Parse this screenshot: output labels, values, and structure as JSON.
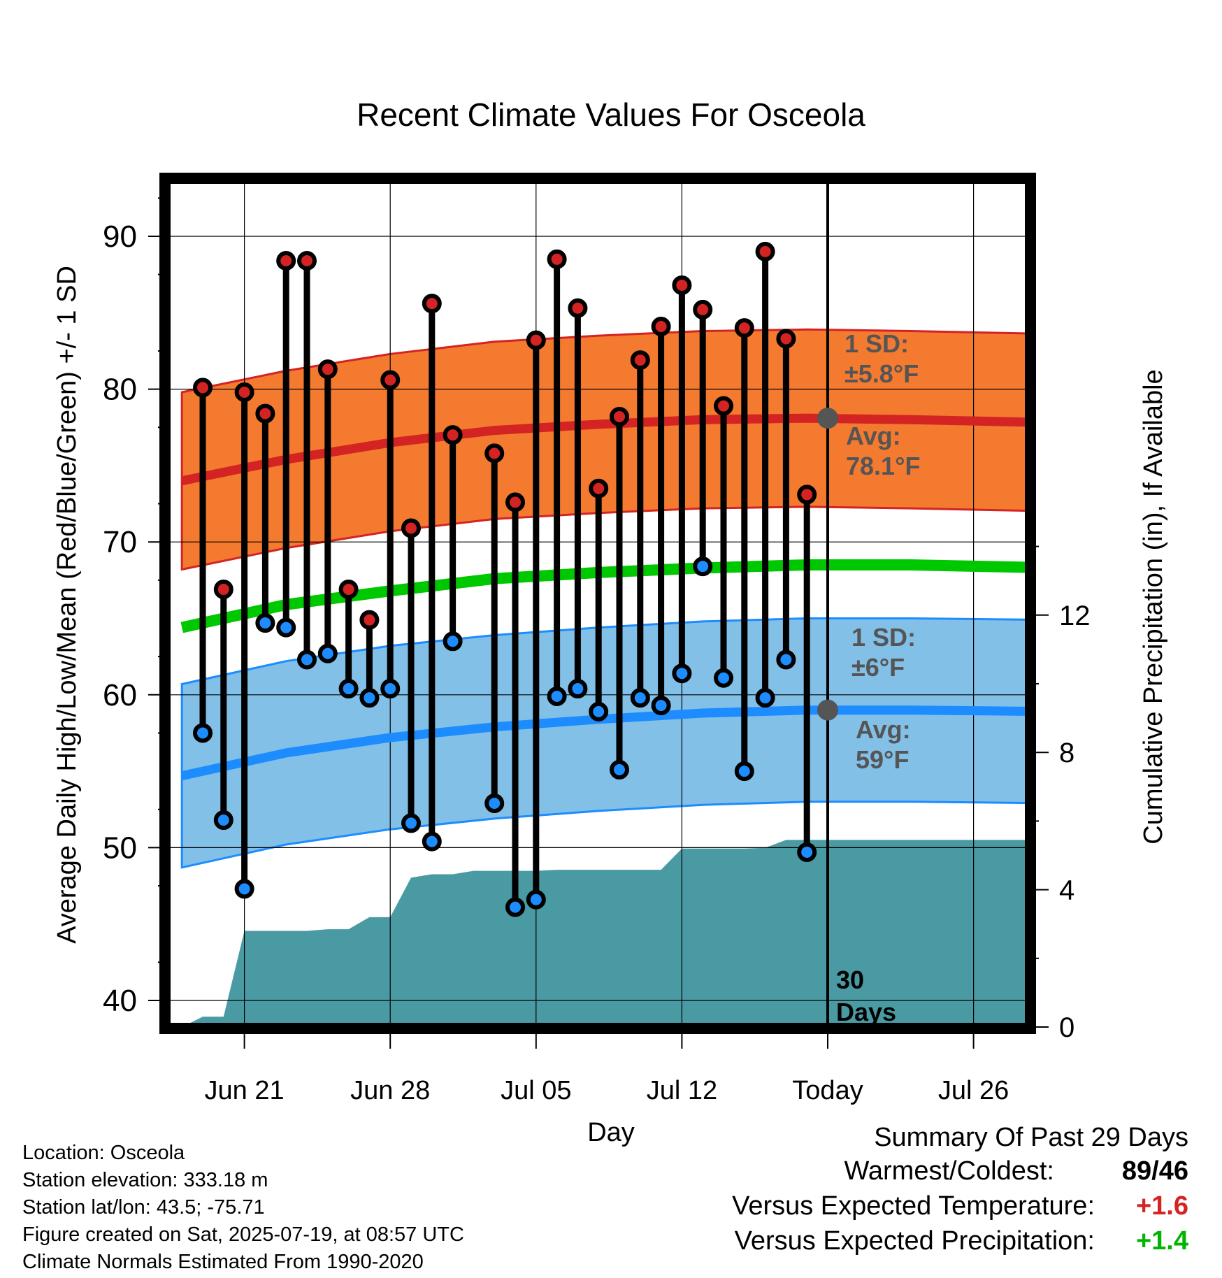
{
  "chart_data": {
    "type": "line",
    "title": "Recent Climate Values For Osceola",
    "xlabel": "Day",
    "ylabel": "Average Daily High/Low/Mean (Red/Blue/Green) +/- 1 SD",
    "y2label": "Cumulative Precipitation (in), If Available",
    "ylim": [
      38.5,
      94
    ],
    "y2lim": [
      0,
      18.7
    ],
    "xlim_dates": [
      "2025-06-18",
      "2025-07-30"
    ],
    "x_tick_labels": [
      "Jun 21",
      "Jun 28",
      "Jul 05",
      "Jul 12",
      "Today",
      "Jul 26"
    ],
    "y_ticks": [
      40,
      50,
      60,
      70,
      80,
      90
    ],
    "y2_ticks": [
      0,
      4,
      8,
      12
    ],
    "grid": true,
    "colors": {
      "high": "#d42323",
      "high_band": "#f47a30",
      "low": "#1c8cff",
      "low_band": "#82c0e8",
      "mean": "#00c800",
      "precip": "#4a9aa4",
      "annotation": "#555555"
    },
    "today": "2025-07-19",
    "today_label": [
      "30",
      "Days"
    ],
    "dates": [
      "2025-06-19",
      "2025-06-20",
      "2025-06-21",
      "2025-06-22",
      "2025-06-23",
      "2025-06-24",
      "2025-06-25",
      "2025-06-26",
      "2025-06-27",
      "2025-06-28",
      "2025-06-29",
      "2025-06-30",
      "2025-07-01",
      "2025-07-02",
      "2025-07-03",
      "2025-07-04",
      "2025-07-05",
      "2025-07-06",
      "2025-07-07",
      "2025-07-08",
      "2025-07-09",
      "2025-07-10",
      "2025-07-11",
      "2025-07-12",
      "2025-07-13",
      "2025-07-14",
      "2025-07-15",
      "2025-07-16",
      "2025-07-17",
      "2025-07-18"
    ],
    "series": [
      {
        "name": "High",
        "values": [
          80.1,
          66.9,
          79.8,
          78.4,
          88.4,
          88.4,
          81.3,
          66.9,
          64.9,
          80.6,
          70.9,
          85.6,
          77.0,
          null,
          75.8,
          72.6,
          83.2,
          88.5,
          85.3,
          73.5,
          78.2,
          81.9,
          84.1,
          86.8,
          85.2,
          78.9,
          84.0,
          89.0,
          83.3,
          73.1
        ]
      },
      {
        "name": "Low",
        "values": [
          57.5,
          51.8,
          47.3,
          64.7,
          64.4,
          62.3,
          62.7,
          60.4,
          59.8,
          60.4,
          51.6,
          50.4,
          63.5,
          null,
          52.9,
          46.1,
          46.6,
          59.9,
          60.4,
          58.9,
          55.1,
          59.8,
          59.3,
          61.4,
          68.4,
          61.1,
          55.0,
          59.8,
          62.3,
          49.7
        ]
      }
    ],
    "normals_x": [
      "2025-06-18",
      "2025-06-23",
      "2025-06-28",
      "2025-07-03",
      "2025-07-08",
      "2025-07-13",
      "2025-07-18",
      "2025-07-23",
      "2025-07-30"
    ],
    "normal_high": [
      74.0,
      75.4,
      76.5,
      77.3,
      77.7,
      78.0,
      78.1,
      78.0,
      77.8
    ],
    "normal_high_sd": 5.8,
    "normal_low": [
      54.7,
      56.2,
      57.2,
      57.9,
      58.4,
      58.8,
      59.0,
      59.0,
      58.9
    ],
    "normal_low_sd": 6.0,
    "normal_mean": [
      64.4,
      65.9,
      66.8,
      67.6,
      68.0,
      68.3,
      68.5,
      68.5,
      68.3
    ],
    "precip_cumulative": [
      0.0,
      0.3,
      0.3,
      2.8,
      2.8,
      2.8,
      2.8,
      2.85,
      2.85,
      3.2,
      3.2,
      4.35,
      4.45,
      4.45,
      4.55,
      4.55,
      4.55,
      4.55,
      4.58,
      4.58,
      4.58,
      4.58,
      4.58,
      4.58,
      5.2,
      5.2,
      5.2,
      5.2,
      5.22,
      5.45,
      5.45
    ],
    "annotations": {
      "high_sd": [
        "1 SD:",
        "±5.8°F"
      ],
      "high_avg": [
        "Avg:",
        "78.1°F"
      ],
      "low_sd": [
        "1 SD:",
        "±6°F"
      ],
      "low_avg": [
        "Avg:",
        "59°F"
      ],
      "high_avg_value": 78.1,
      "low_avg_value": 59
    }
  },
  "info": {
    "location": "Location: Osceola",
    "elevation": "Station elevation: 333.18 m",
    "latlon": "Station lat/lon: 43.5; -75.71",
    "created": "Figure created on Sat, 2025-07-19, at 08:57 UTC",
    "normals": "Climate Normals Estimated From 1990-2020"
  },
  "summary": {
    "title": "Summary Of Past 29 Days",
    "warm_cold_label": "Warmest/Coldest:",
    "warmest": "89",
    "coldest": "46",
    "temp_label": "Versus Expected Temperature:",
    "temp_value": "+1.6",
    "temp_color": "#d42323",
    "precip_label": "Versus Expected Precipitation:",
    "precip_value": "+1.4",
    "precip_color": "#00b400"
  }
}
